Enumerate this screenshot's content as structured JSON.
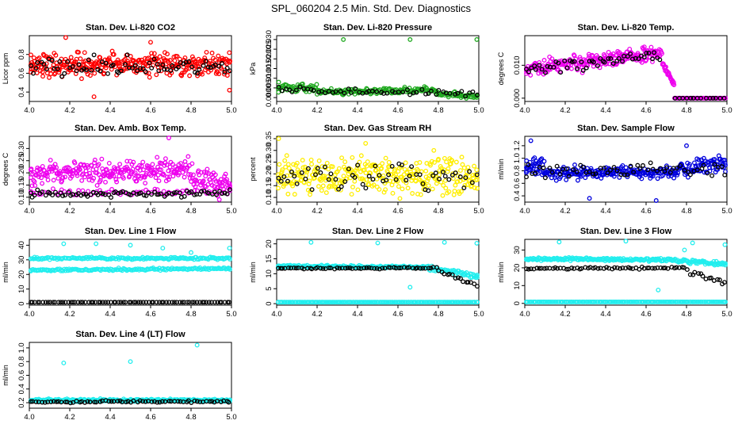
{
  "main_title": "SPL_060204  2.5 Min. Std. Dev. Diagnostics",
  "chart_data": [
    {
      "type": "scatter",
      "title": "Stan. Dev. Li-820 CO2",
      "ylabel": "Licor ppm",
      "xlim": [
        4.0,
        5.0
      ],
      "ylim": [
        0.3,
        1.0
      ],
      "x_ticks": [
        "4.0",
        "4.2",
        "4.4",
        "4.6",
        "4.8",
        "5.0"
      ],
      "y_ticks": [
        {
          "value": 0.4,
          "label": "0.4"
        },
        {
          "value": 0.6,
          "label": "0.6"
        },
        {
          "value": 0.8,
          "label": "0.8"
        }
      ],
      "series": [
        {
          "name": "main",
          "color": "#ff0000",
          "bands": [
            {
              "from": 4.0,
              "to": 5.0,
              "y0": 0.69,
              "y1": 0.69,
              "spread": 0.09,
              "n": 330
            }
          ],
          "outliers": [
            [
              4.32,
              0.35
            ],
            [
              4.18,
              0.98
            ],
            [
              4.99,
              0.42
            ],
            [
              4.6,
              0.93
            ]
          ]
        },
        {
          "name": "secondary",
          "color": "#000000",
          "bands": [
            {
              "from": 4.0,
              "to": 5.0,
              "y0": 0.67,
              "y1": 0.67,
              "spread": 0.08,
              "n": 75
            }
          ]
        }
      ]
    },
    {
      "type": "scatter",
      "title": "Stan. Dev. Li-820 Pressure",
      "ylabel": "kPa",
      "xlim": [
        4.0,
        5.0
      ],
      "ylim": [
        -0.002,
        0.032
      ],
      "x_ticks": [
        "4.0",
        "4.2",
        "4.4",
        "4.6",
        "4.8",
        "5.0"
      ],
      "y_ticks": [
        {
          "value": 0.0,
          "label": "0.000"
        },
        {
          "value": 0.005,
          "label": "0.005"
        },
        {
          "value": 0.01,
          "label": "0.010"
        },
        {
          "value": 0.015,
          "label": "0.015"
        },
        {
          "value": 0.02,
          "label": "0.020"
        },
        {
          "value": 0.025,
          "label": "0.025"
        },
        {
          "value": 0.03,
          "label": "0.030"
        }
      ],
      "series": [
        {
          "name": "main",
          "color": "#22aa22",
          "bands": [
            {
              "from": 4.0,
              "to": 4.2,
              "y0": 0.005,
              "y1": 0.005,
              "spread": 0.0015,
              "n": 50
            },
            {
              "from": 4.2,
              "to": 4.78,
              "y0": 0.003,
              "y1": 0.004,
              "spread": 0.0012,
              "n": 150
            },
            {
              "from": 4.78,
              "to": 5.0,
              "y0": 0.002,
              "y1": 0.0005,
              "spread": 0.0012,
              "n": 60
            }
          ],
          "outliers": [
            [
              4.33,
              0.03
            ],
            [
              4.66,
              0.03
            ],
            [
              4.99,
              0.03
            ],
            [
              4.01,
              0.008
            ]
          ]
        },
        {
          "name": "secondary",
          "color": "#000000",
          "bands": [
            {
              "from": 4.0,
              "to": 5.0,
              "y0": 0.004,
              "y1": 0.002,
              "spread": 0.0012,
              "n": 55
            }
          ]
        }
      ]
    },
    {
      "type": "scatter",
      "title": "Stan. Dev. Li-820 Temp.",
      "ylabel": "degrees C",
      "xlim": [
        4.0,
        5.0
      ],
      "ylim": [
        -0.001,
        0.019
      ],
      "x_ticks": [
        "4.0",
        "4.2",
        "4.4",
        "4.6",
        "4.8",
        "5.0"
      ],
      "y_ticks": [
        {
          "value": 0.0,
          "label": "0.000"
        },
        {
          "value": 0.01,
          "label": "0.010"
        }
      ],
      "series": [
        {
          "name": "main",
          "color": "#ee00ee",
          "bands": [
            {
              "from": 4.0,
              "to": 4.68,
              "y0": 0.0085,
              "y1": 0.014,
              "spread": 0.0018,
              "n": 230
            },
            {
              "from": 4.68,
              "to": 4.74,
              "y0": 0.011,
              "y1": 0.004,
              "spread": 0.0008,
              "n": 25
            },
            {
              "from": 4.74,
              "to": 5.0,
              "y0": 0.0,
              "y1": 0.0,
              "spread": 0.0,
              "n": 60
            }
          ]
        },
        {
          "name": "secondary",
          "color": "#000000",
          "bands": [
            {
              "from": 4.0,
              "to": 4.68,
              "y0": 0.009,
              "y1": 0.013,
              "spread": 0.0015,
              "n": 50
            },
            {
              "from": 4.74,
              "to": 5.0,
              "y0": 0.0,
              "y1": 0.0,
              "spread": 0.0,
              "n": 14
            }
          ]
        }
      ]
    },
    {
      "type": "scatter",
      "title": "Stan. Dev. Amb. Box Temp.",
      "ylabel": "degrees C",
      "xlim": [
        4.0,
        5.0
      ],
      "ylim": [
        0.08,
        0.35
      ],
      "x_ticks": [
        "4.0",
        "4.2",
        "4.4",
        "4.6",
        "4.8",
        "5.0"
      ],
      "y_ticks": [
        {
          "value": 0.1,
          "label": "0.10"
        },
        {
          "value": 0.15,
          "label": "0.15"
        },
        {
          "value": 0.2,
          "label": "0.20"
        },
        {
          "value": 0.25,
          "label": "0.25"
        },
        {
          "value": 0.3,
          "label": "0.30"
        }
      ],
      "series": [
        {
          "name": "main",
          "color": "#ee00ee",
          "bands": [
            {
              "from": 4.0,
              "to": 4.8,
              "y0": 0.2,
              "y1": 0.21,
              "spread": 0.035,
              "n": 260
            },
            {
              "from": 4.8,
              "to": 5.0,
              "y0": 0.19,
              "y1": 0.15,
              "spread": 0.03,
              "n": 60
            },
            {
              "from": 4.0,
              "to": 5.0,
              "y0": 0.12,
              "y1": 0.12,
              "spread": 0.01,
              "n": 70
            }
          ],
          "outliers": [
            [
              4.69,
              0.345
            ],
            [
              4.94,
              0.09
            ]
          ]
        },
        {
          "name": "secondary",
          "color": "#000000",
          "bands": [
            {
              "from": 4.0,
              "to": 5.0,
              "y0": 0.115,
              "y1": 0.115,
              "spread": 0.01,
              "n": 80
            }
          ]
        }
      ]
    },
    {
      "type": "scatter",
      "title": "Stan. Dev. Gas Stream RH",
      "ylabel": "percent",
      "xlim": [
        4.0,
        5.0
      ],
      "ylim": [
        0.08,
        0.36
      ],
      "x_ticks": [
        "4.0",
        "4.2",
        "4.4",
        "4.6",
        "4.8",
        "5.0"
      ],
      "y_ticks": [
        {
          "value": 0.1,
          "label": "0.10"
        },
        {
          "value": 0.15,
          "label": "0.15"
        },
        {
          "value": 0.2,
          "label": "0.20"
        },
        {
          "value": 0.25,
          "label": "0.25"
        },
        {
          "value": 0.3,
          "label": "0.30"
        },
        {
          "value": 0.35,
          "label": "0.35"
        }
      ],
      "series": [
        {
          "name": "main",
          "color": "#ffee00",
          "bands": [
            {
              "from": 4.0,
              "to": 5.0,
              "y0": 0.19,
              "y1": 0.19,
              "spread": 0.06,
              "n": 330
            }
          ],
          "outliers": [
            [
              4.01,
              0.35
            ],
            [
              4.44,
              0.33
            ]
          ]
        },
        {
          "name": "secondary",
          "color": "#000000",
          "bands": [
            {
              "from": 4.0,
              "to": 5.0,
              "y0": 0.18,
              "y1": 0.18,
              "spread": 0.05,
              "n": 60
            }
          ]
        }
      ]
    },
    {
      "type": "scatter",
      "title": "Stan. Dev. Sample Flow",
      "ylabel": "ml/min",
      "xlim": [
        4.0,
        5.0
      ],
      "ylim": [
        0.3,
        1.35
      ],
      "x_ticks": [
        "4.0",
        "4.2",
        "4.4",
        "4.6",
        "4.8",
        "5.0"
      ],
      "y_ticks": [
        {
          "value": 0.4,
          "label": "0.4"
        },
        {
          "value": 0.6,
          "label": "0.6"
        },
        {
          "value": 0.8,
          "label": "0.8"
        },
        {
          "value": 1.0,
          "label": "1.0"
        },
        {
          "value": 1.2,
          "label": "1.2"
        }
      ],
      "series": [
        {
          "name": "main",
          "color": "#0000dd",
          "bands": [
            {
              "from": 4.0,
              "to": 4.1,
              "y0": 0.88,
              "y1": 0.82,
              "spread": 0.1,
              "n": 40
            },
            {
              "from": 4.1,
              "to": 4.75,
              "y0": 0.76,
              "y1": 0.78,
              "spread": 0.07,
              "n": 200
            },
            {
              "from": 4.75,
              "to": 5.0,
              "y0": 0.82,
              "y1": 0.92,
              "spread": 0.1,
              "n": 80
            }
          ],
          "outliers": [
            [
              4.03,
              1.28
            ],
            [
              4.65,
              0.32
            ],
            [
              4.32,
              0.36
            ],
            [
              4.8,
              1.2
            ]
          ]
        },
        {
          "name": "secondary",
          "color": "#000000",
          "bands": [
            {
              "from": 4.0,
              "to": 5.0,
              "y0": 0.78,
              "y1": 0.84,
              "spread": 0.08,
              "n": 60
            }
          ]
        }
      ]
    },
    {
      "type": "scatter",
      "title": "Stan. Dev. Line 1 Flow",
      "ylabel": "ml/min",
      "xlim": [
        4.0,
        5.0
      ],
      "ylim": [
        -1,
        44
      ],
      "x_ticks": [
        "4.0",
        "4.2",
        "4.4",
        "4.6",
        "4.8",
        "5.0"
      ],
      "y_ticks": [
        {
          "value": 0,
          "label": "0"
        },
        {
          "value": 10,
          "label": "10"
        },
        {
          "value": 20,
          "label": "20"
        },
        {
          "value": 30,
          "label": "30"
        },
        {
          "value": 40,
          "label": "40"
        }
      ],
      "series": [
        {
          "name": "main",
          "color": "#22eeee",
          "bands": [
            {
              "from": 4.0,
              "to": 5.0,
              "y0": 31,
              "y1": 31,
              "spread": 0.6,
              "n": 170
            },
            {
              "from": 4.0,
              "to": 5.0,
              "y0": 23,
              "y1": 24,
              "spread": 0.6,
              "n": 170
            }
          ],
          "outliers": [
            [
              4.17,
              41
            ],
            [
              4.5,
              40
            ],
            [
              4.33,
              41
            ],
            [
              4.8,
              35
            ],
            [
              4.99,
              38
            ],
            [
              4.66,
              38
            ]
          ]
        },
        {
          "name": "secondary",
          "color": "#000000",
          "bands": [
            {
              "from": 4.0,
              "to": 5.0,
              "y0": 1.0,
              "y1": 1.0,
              "spread": 0.0,
              "n": 80
            }
          ]
        }
      ]
    },
    {
      "type": "scatter",
      "title": "Stan. Dev. Line 2 Flow",
      "ylabel": "ml/min",
      "xlim": [
        4.0,
        5.0
      ],
      "ylim": [
        -0.5,
        21.5
      ],
      "x_ticks": [
        "4.0",
        "4.2",
        "4.4",
        "4.6",
        "4.8",
        "5.0"
      ],
      "y_ticks": [
        {
          "value": 0,
          "label": "0"
        },
        {
          "value": 5,
          "label": "5"
        },
        {
          "value": 10,
          "label": "10"
        },
        {
          "value": 15,
          "label": "15"
        },
        {
          "value": 20,
          "label": "20"
        }
      ],
      "series": [
        {
          "name": "main",
          "color": "#22eeee",
          "bands": [
            {
              "from": 4.0,
              "to": 4.75,
              "y0": 12.5,
              "y1": 12.2,
              "spread": 0.3,
              "n": 180
            },
            {
              "from": 4.75,
              "to": 5.0,
              "y0": 12.0,
              "y1": 9.0,
              "spread": 0.6,
              "n": 60
            },
            {
              "from": 4.0,
              "to": 5.0,
              "y0": 0.5,
              "y1": 0.5,
              "spread": 0.0,
              "n": 150
            }
          ],
          "outliers": [
            [
              4.17,
              20.5
            ],
            [
              4.5,
              20.3
            ],
            [
              4.83,
              20.5
            ],
            [
              4.99,
              20.2
            ],
            [
              4.66,
              5.5
            ]
          ]
        },
        {
          "name": "secondary",
          "color": "#000000",
          "bands": [
            {
              "from": 4.0,
              "to": 4.8,
              "y0": 11.8,
              "y1": 11.9,
              "spread": 0.2,
              "n": 60
            },
            {
              "from": 4.8,
              "to": 5.0,
              "y0": 11.0,
              "y1": 6.0,
              "spread": 0.5,
              "n": 15
            }
          ]
        }
      ]
    },
    {
      "type": "scatter",
      "title": "Stan. Dev. Line 3 Flow",
      "ylabel": "ml/min",
      "xlim": [
        4.0,
        5.0
      ],
      "ylim": [
        -1,
        36
      ],
      "x_ticks": [
        "4.0",
        "4.2",
        "4.4",
        "4.6",
        "4.8",
        "5.0"
      ],
      "y_ticks": [
        {
          "value": 0,
          "label": "0"
        },
        {
          "value": 10,
          "label": "10"
        },
        {
          "value": 20,
          "label": "20"
        },
        {
          "value": 30,
          "label": "30"
        }
      ],
      "series": [
        {
          "name": "main",
          "color": "#22eeee",
          "bands": [
            {
              "from": 4.0,
              "to": 4.75,
              "y0": 25,
              "y1": 24.5,
              "spread": 0.6,
              "n": 180
            },
            {
              "from": 4.75,
              "to": 5.0,
              "y0": 24.0,
              "y1": 22.0,
              "spread": 0.8,
              "n": 60
            },
            {
              "from": 4.0,
              "to": 5.0,
              "y0": 0.8,
              "y1": 0.8,
              "spread": 0.0,
              "n": 150
            }
          ],
          "outliers": [
            [
              4.17,
              34.5
            ],
            [
              4.5,
              35
            ],
            [
              4.83,
              34
            ],
            [
              4.99,
              33
            ],
            [
              4.66,
              7.5
            ],
            [
              4.79,
              30
            ]
          ]
        },
        {
          "name": "secondary",
          "color": "#000000",
          "bands": [
            {
              "from": 4.0,
              "to": 4.8,
              "y0": 19.5,
              "y1": 20.0,
              "spread": 0.4,
              "n": 60
            },
            {
              "from": 4.8,
              "to": 5.0,
              "y0": 18.5,
              "y1": 11.0,
              "spread": 1.0,
              "n": 15
            }
          ]
        }
      ]
    },
    {
      "type": "scatter",
      "title": "Stan. Dev. Line 4 (LT) Flow",
      "ylabel": "ml/min",
      "xlim": [
        4.0,
        5.0
      ],
      "ylim": [
        0.12,
        1.08
      ],
      "x_ticks": [
        "4.0",
        "4.2",
        "4.4",
        "4.6",
        "4.8",
        "5.0"
      ],
      "y_ticks": [
        {
          "value": 0.2,
          "label": "0.2"
        },
        {
          "value": 0.4,
          "label": "0.4"
        },
        {
          "value": 0.6,
          "label": "0.6"
        },
        {
          "value": 0.8,
          "label": "0.8"
        },
        {
          "value": 1.0,
          "label": "1.0"
        }
      ],
      "series": [
        {
          "name": "main",
          "color": "#22eeee",
          "bands": [
            {
              "from": 4.0,
              "to": 5.0,
              "y0": 0.235,
              "y1": 0.235,
              "spread": 0.015,
              "n": 320
            }
          ],
          "outliers": [
            [
              4.17,
              0.78
            ],
            [
              4.5,
              0.8
            ],
            [
              4.83,
              1.04
            ]
          ]
        },
        {
          "name": "secondary",
          "color": "#000000",
          "bands": [
            {
              "from": 4.0,
              "to": 5.0,
              "y0": 0.215,
              "y1": 0.215,
              "spread": 0.01,
              "n": 70
            }
          ]
        }
      ]
    }
  ]
}
